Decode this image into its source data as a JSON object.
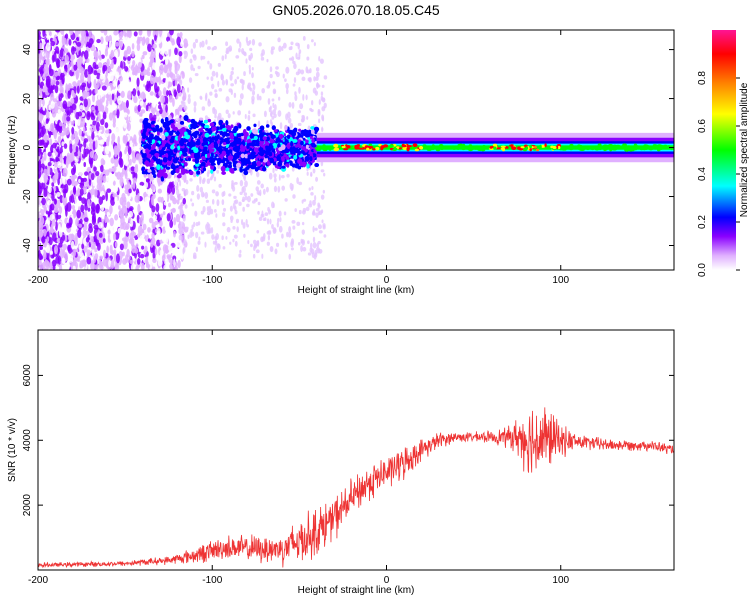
{
  "chart_data": [
    {
      "type": "heatmap",
      "title": "GN05.2026.070.18.05.C45",
      "xlabel": "Height of straight line (km)",
      "ylabel": "Frequency (Hz)",
      "xlim": [
        -200,
        165
      ],
      "ylim": [
        -50,
        48
      ],
      "xticks": [
        -200,
        -100,
        0,
        100
      ],
      "yticks": [
        -40,
        -20,
        0,
        20,
        40
      ],
      "colorbar": {
        "label": "Normalized spectral amplitude",
        "range": [
          0,
          1
        ],
        "ticks": [
          "0.0",
          "0.2",
          "0.4",
          "0.6",
          "0.8"
        ],
        "colors": [
          "#ffffff",
          "#e0b0ff",
          "#8a00ff",
          "#0000ff",
          "#00ffff",
          "#00ff00",
          "#ffff00",
          "#ff8000",
          "#ff0000",
          "#ff1493"
        ]
      },
      "regions": [
        {
          "x": [
            -200,
            -120
          ],
          "description_level": 0.25,
          "note": "broadband scatter"
        },
        {
          "x": [
            -140,
            -40
          ],
          "level": 0.3
        },
        {
          "x": [
            -40,
            165
          ],
          "level": 0.55
        }
      ]
    },
    {
      "type": "line",
      "xlabel": "Height of straight line (km)",
      "ylabel": "SNR (10 * v/v)",
      "xlim": [
        -200,
        165
      ],
      "ylim": [
        0,
        7400
      ],
      "xticks": [
        -200,
        -100,
        0,
        100
      ],
      "yticks": [
        2000,
        4000,
        6000
      ],
      "series": [
        {
          "name": "SNR",
          "color": "#ee3333",
          "x": [
            -200,
            -150,
            -125,
            -110,
            -100,
            -90,
            -75,
            -60,
            -50,
            -40,
            -30,
            -20,
            -10,
            0,
            10,
            20,
            30,
            40,
            50,
            60,
            70,
            75,
            80,
            85,
            90,
            95,
            100,
            110,
            120,
            130,
            140,
            150,
            160,
            165
          ],
          "mean": [
            150,
            200,
            300,
            450,
            600,
            700,
            650,
            650,
            900,
            1200,
            1600,
            2200,
            2700,
            3000,
            3300,
            3700,
            4000,
            4100,
            4100,
            4100,
            4100,
            4100,
            4050,
            4000,
            4050,
            4050,
            4000,
            3950,
            3900,
            3850,
            3850,
            3850,
            3750,
            3700
          ],
          "noise": [
            80,
            100,
            150,
            300,
            400,
            450,
            500,
            600,
            900,
            900,
            800,
            700,
            700,
            600,
            600,
            400,
            300,
            200,
            180,
            220,
            400,
            700,
            1200,
            1500,
            1400,
            1000,
            600,
            300,
            250,
            220,
            200,
            200,
            200,
            200
          ]
        }
      ]
    }
  ]
}
